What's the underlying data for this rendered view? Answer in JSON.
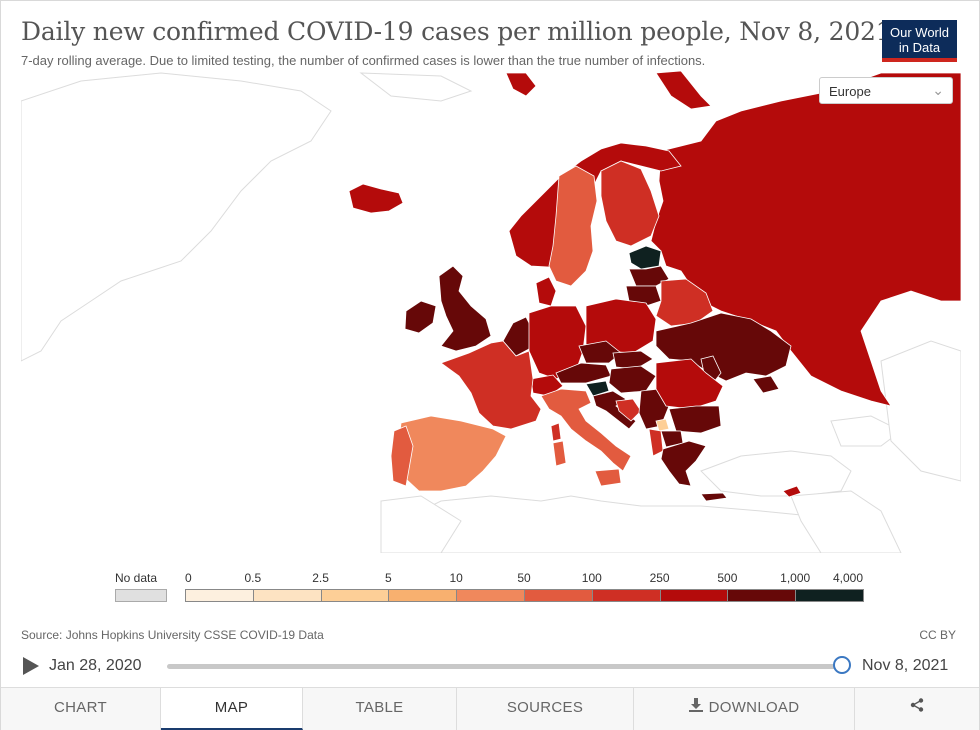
{
  "header": {
    "title": "Daily new confirmed COVID-19 cases per million people, Nov 8, 2021",
    "subtitle": "7-day rolling average. Due to limited testing, the number of confirmed cases is lower than the true number of infections.",
    "logo_line1": "Our World",
    "logo_line2": "in Data"
  },
  "region_selector": {
    "selected": "Europe"
  },
  "legend": {
    "no_data_label": "No data",
    "tick_labels": [
      "0",
      "0.5",
      "2.5",
      "5",
      "10",
      "50",
      "100",
      "250",
      "500",
      "1,000",
      "4,000"
    ],
    "bin_colors": [
      "#fdf0df",
      "#fde3c2",
      "#fdcf97",
      "#f8b06f",
      "#f0885c",
      "#e25b3f",
      "#cf2f24",
      "#b40b0b",
      "#660808",
      "#0f2120"
    ],
    "no_data_color": "#e0e0e0"
  },
  "map_data": {
    "date": "Nov 8, 2021",
    "colors": {
      "land_no_data": "#ffffff",
      "land_border": "#dcdcdc"
    }
  },
  "footer": {
    "source": "Source: Johns Hopkins University CSSE COVID-19 Data",
    "license": "CC BY"
  },
  "timeline": {
    "start_date": "Jan 28, 2020",
    "end_date": "Nov 8, 2021",
    "position": 1.0
  },
  "tabs": [
    {
      "label": "CHART"
    },
    {
      "label": "MAP",
      "active": true
    },
    {
      "label": "TABLE"
    },
    {
      "label": "SOURCES"
    },
    {
      "label": "DOWNLOAD",
      "icon": "download-icon"
    },
    {
      "label": "",
      "icon": "share-icon"
    }
  ]
}
